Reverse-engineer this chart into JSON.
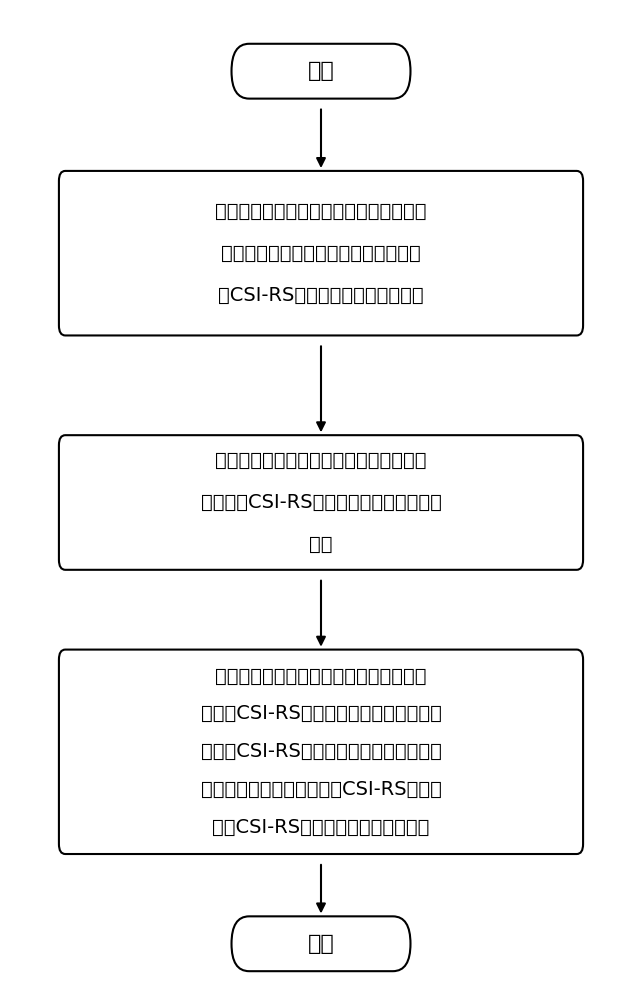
{
  "title": "",
  "background_color": "#ffffff",
  "start_label": "开始",
  "end_label": "结束",
  "box1_lines": [
    "基站通知目标节点下的终端对所述目标节",
    "点的相邻节点的信道状态信息参考信号",
    "（CSI-RS）进行导频接收功率测量"
  ],
  "box2_lines": [
    "所述终端将测量到的导频接收功率大于预",
    "设门限的CSI-RS资源配置方式上报至所述",
    "基站"
  ],
  "box3_lines": [
    "所述基站统计所述导频接收功率大于预设",
    "门限的CSI-RS配置，并在所述目标节点的",
    "已使用CSI-RS配置集合中选择一与所述导",
    "频接收功率大于预设门限的CSI-RS配置正",
    "交的CSI-RS配置分配给所述目标节点"
  ],
  "font_size": 14,
  "font_family": "SimSun",
  "box_edge_color": "#000000",
  "box_fill_color": "#ffffff",
  "arrow_color": "#000000",
  "fig_width": 6.42,
  "fig_height": 10.0
}
